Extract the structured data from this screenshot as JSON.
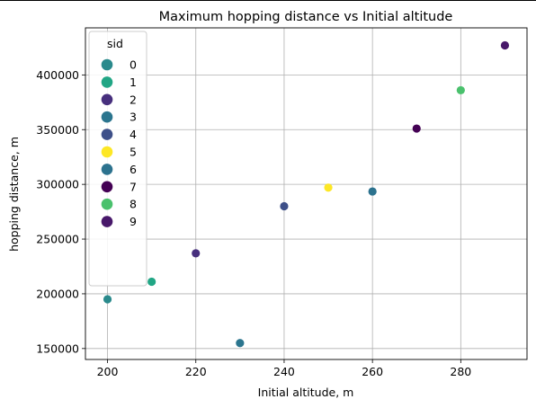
{
  "chart_data": {
    "type": "scatter",
    "title": "Maximum hopping distance vs Initial altitude",
    "xlabel": "Initial altitude, m",
    "ylabel": "hopping distance, m",
    "xlim": [
      195,
      295
    ],
    "ylim": [
      140000,
      443000
    ],
    "xticks": [
      200,
      220,
      240,
      260,
      280
    ],
    "yticks": [
      150000,
      200000,
      250000,
      300000,
      350000,
      400000
    ],
    "grid": true,
    "legend": {
      "title": "sid",
      "placement": "top-left"
    },
    "series": [
      {
        "name": "0",
        "color": "#2a8a8c",
        "x": [
          200
        ],
        "y": [
          195000
        ]
      },
      {
        "name": "1",
        "color": "#21a685",
        "x": [
          210
        ],
        "y": [
          211000
        ]
      },
      {
        "name": "2",
        "color": "#472f7d",
        "x": [
          220
        ],
        "y": [
          237000
        ]
      },
      {
        "name": "3",
        "color": "#2b758e",
        "x": [
          230
        ],
        "y": [
          155000
        ]
      },
      {
        "name": "4",
        "color": "#3e5089",
        "x": [
          240
        ],
        "y": [
          280000
        ]
      },
      {
        "name": "5",
        "color": "#fde725",
        "x": [
          250
        ],
        "y": [
          297000
        ]
      },
      {
        "name": "6",
        "color": "#2c728e",
        "x": [
          260
        ],
        "y": [
          293500
        ]
      },
      {
        "name": "7",
        "color": "#440154",
        "x": [
          270
        ],
        "y": [
          351000
        ]
      },
      {
        "name": "8",
        "color": "#4ac16d",
        "x": [
          280
        ],
        "y": [
          386000
        ]
      },
      {
        "name": "9",
        "color": "#48186a",
        "x": [
          290
        ],
        "y": [
          427000
        ]
      }
    ]
  }
}
